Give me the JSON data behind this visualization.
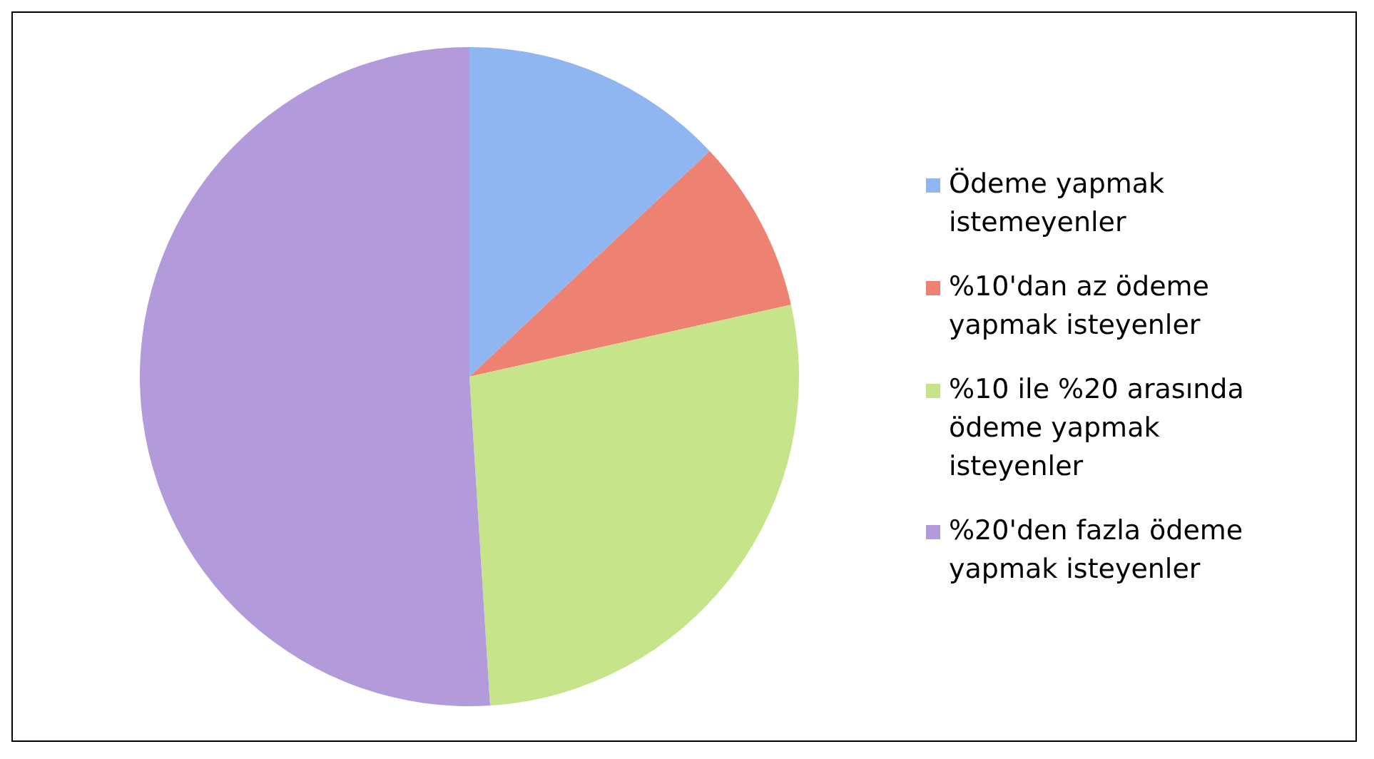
{
  "chart_data": {
    "type": "pie",
    "categories": [
      "Ödeme yapmak istemeyenler",
      "%10'dan az ödeme yapmak isteyenler",
      "%10 ile %20 arasında ödeme yapmak isteyenler",
      "%20'den fazla ödeme yapmak isteyenler"
    ],
    "values": [
      13,
      8.5,
      27.5,
      51
    ],
    "colors": [
      "#8fb6f0",
      "#ee8272",
      "#c6e48a",
      "#b39bdb"
    ],
    "legend": "right"
  }
}
